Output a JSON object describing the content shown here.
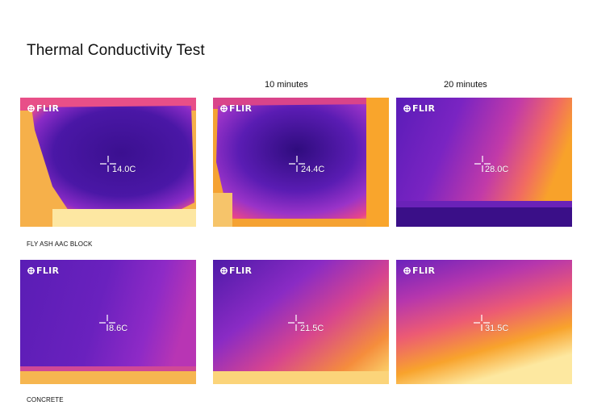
{
  "title": "Thermal Conductivity Test",
  "columns": [
    "",
    "10 minutes",
    "20 minutes"
  ],
  "rows": [
    {
      "label": "FLY ASH AAC BLOCK",
      "images": [
        {
          "brand": "FLIR",
          "reading": "14.0C"
        },
        {
          "brand": "FLIR",
          "reading": "24.4C"
        },
        {
          "brand": "FLIR",
          "reading": "28.0C"
        }
      ]
    },
    {
      "label": "CONCRETE",
      "images": [
        {
          "brand": "FLIR",
          "reading": "8.6C"
        },
        {
          "brand": "FLIR",
          "reading": "21.5C"
        },
        {
          "brand": "FLIR",
          "reading": "31.5C"
        }
      ]
    }
  ],
  "colors": {
    "cold": "#3a0f8f",
    "mid": "#9b2bc7",
    "warm": "#e8418a",
    "hot": "#f7a21e",
    "hottest": "#fff3b0"
  },
  "icons": {
    "brand": "flir-logo-icon",
    "crosshair": "crosshair-icon"
  }
}
